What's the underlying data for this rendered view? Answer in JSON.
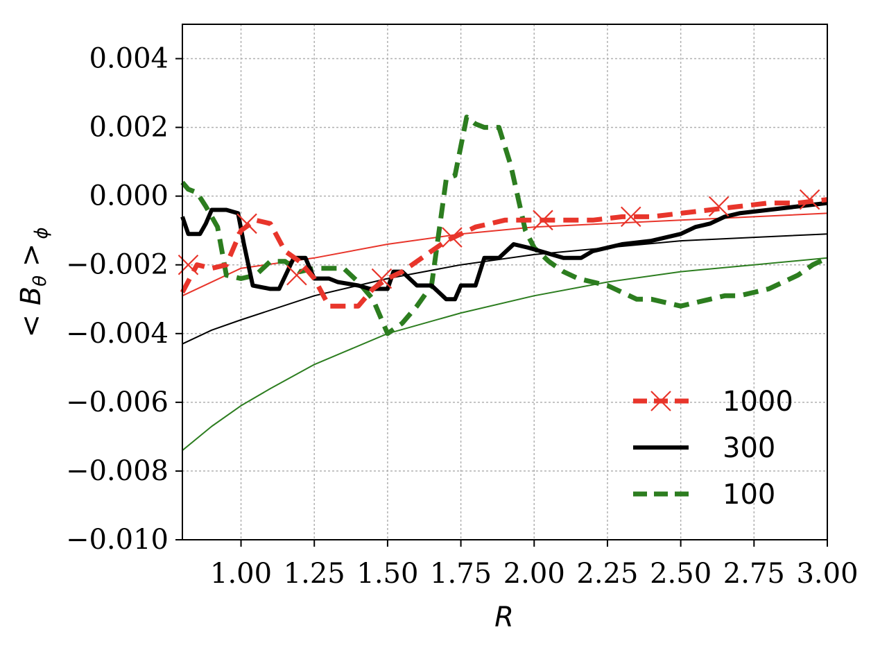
{
  "chart_data": {
    "type": "line",
    "xlabel": "R",
    "ylabel": "< B",
    "ylabel_sub": "θ",
    "ylabel_tail": " >",
    "ylabel_sub2": "ϕ",
    "xlim": [
      0.8,
      3.0
    ],
    "ylim": [
      -0.01,
      0.005
    ],
    "xticks": [
      1.0,
      1.25,
      1.5,
      1.75,
      2.0,
      2.25,
      2.5,
      2.75,
      3.0
    ],
    "xtick_labels": [
      "1.00",
      "1.25",
      "1.50",
      "1.75",
      "2.00",
      "2.25",
      "2.50",
      "2.75",
      "3.00"
    ],
    "yticks": [
      -0.01,
      -0.008,
      -0.006,
      -0.004,
      -0.002,
      0.0,
      0.002,
      0.004
    ],
    "ytick_labels": [
      "−0.010",
      "−0.008",
      "−0.006",
      "−0.004",
      "−0.002",
      "0.000",
      "0.002",
      "0.004"
    ],
    "grid": true,
    "legend_position": "bottom-right",
    "series": [
      {
        "name": "1000",
        "color": "#e8352b",
        "style": "dashed-thick",
        "marker": "x",
        "x": [
          0.8,
          0.85,
          0.9,
          0.95,
          1.0,
          1.05,
          1.1,
          1.15,
          1.2,
          1.25,
          1.3,
          1.35,
          1.4,
          1.45,
          1.5,
          1.55,
          1.6,
          1.65,
          1.7,
          1.75,
          1.8,
          1.85,
          1.9,
          2.0,
          2.1,
          2.2,
          2.3,
          2.4,
          2.5,
          2.6,
          2.7,
          2.8,
          2.9,
          3.0
        ],
        "y": [
          -0.0028,
          -0.002,
          -0.0021,
          -0.002,
          -0.001,
          -0.0007,
          -0.0008,
          -0.0016,
          -0.0019,
          -0.0024,
          -0.0032,
          -0.0032,
          -0.0032,
          -0.0027,
          -0.0024,
          -0.0022,
          -0.0019,
          -0.0016,
          -0.0013,
          -0.0011,
          -0.0009,
          -0.0008,
          -0.0007,
          -0.0007,
          -0.0007,
          -0.0007,
          -0.0006,
          -0.0006,
          -0.0005,
          -0.0004,
          -0.0003,
          -0.0002,
          -0.0002,
          -0.0001
        ],
        "marker_x": [
          0.82,
          1.02,
          1.19,
          1.48,
          1.72,
          2.03,
          2.33,
          2.63,
          2.94
        ],
        "marker_y": [
          -0.002,
          -0.0008,
          -0.0023,
          -0.0024,
          -0.0012,
          -0.0007,
          -0.0006,
          -0.0003,
          -0.0001
        ]
      },
      {
        "name": "300",
        "color": "#000000",
        "style": "solid-thick",
        "x": [
          0.8,
          0.82,
          0.86,
          0.88,
          0.9,
          0.95,
          0.99,
          1.01,
          1.04,
          1.1,
          1.13,
          1.18,
          1.22,
          1.25,
          1.3,
          1.33,
          1.4,
          1.44,
          1.5,
          1.52,
          1.55,
          1.6,
          1.65,
          1.7,
          1.73,
          1.75,
          1.8,
          1.83,
          1.88,
          1.93,
          1.98,
          2.02,
          2.1,
          2.16,
          2.2,
          2.3,
          2.4,
          2.5,
          2.55,
          2.6,
          2.65,
          2.7,
          2.8,
          2.9,
          3.0
        ],
        "y": [
          -0.0006,
          -0.0011,
          -0.0011,
          -0.0008,
          -0.0004,
          -0.0004,
          -0.0005,
          -0.0014,
          -0.0026,
          -0.0027,
          -0.0027,
          -0.0018,
          -0.0018,
          -0.0024,
          -0.0024,
          -0.0025,
          -0.0026,
          -0.0027,
          -0.0027,
          -0.0022,
          -0.0022,
          -0.0026,
          -0.0026,
          -0.003,
          -0.003,
          -0.0026,
          -0.0026,
          -0.0018,
          -0.0018,
          -0.0014,
          -0.0015,
          -0.0016,
          -0.0018,
          -0.0018,
          -0.0016,
          -0.0014,
          -0.0013,
          -0.0011,
          -0.0009,
          -0.0008,
          -0.0006,
          -0.0005,
          -0.0004,
          -0.0003,
          -0.0002
        ]
      },
      {
        "name": "100",
        "color": "#2c7d1f",
        "style": "dashed-thick",
        "x": [
          0.8,
          0.82,
          0.85,
          0.88,
          0.92,
          0.95,
          1.0,
          1.05,
          1.1,
          1.15,
          1.2,
          1.25,
          1.3,
          1.35,
          1.4,
          1.45,
          1.5,
          1.55,
          1.6,
          1.65,
          1.7,
          1.73,
          1.77,
          1.8,
          1.83,
          1.88,
          1.92,
          1.97,
          2.0,
          2.05,
          2.1,
          2.15,
          2.2,
          2.25,
          2.3,
          2.35,
          2.4,
          2.45,
          2.5,
          2.55,
          2.6,
          2.65,
          2.7,
          2.75,
          2.8,
          2.85,
          2.9,
          2.95,
          3.0
        ],
        "y": [
          0.0004,
          0.0002,
          0.0001,
          -0.0003,
          -0.0009,
          -0.0023,
          -0.0024,
          -0.0023,
          -0.0019,
          -0.0019,
          -0.0022,
          -0.0021,
          -0.0021,
          -0.0021,
          -0.0025,
          -0.003,
          -0.004,
          -0.0037,
          -0.0032,
          -0.0026,
          0.0005,
          0.0006,
          0.0023,
          0.0021,
          0.002,
          0.002,
          0.0009,
          -0.001,
          -0.0015,
          -0.0019,
          -0.0022,
          -0.0024,
          -0.0025,
          -0.0026,
          -0.0028,
          -0.003,
          -0.003,
          -0.0031,
          -0.0032,
          -0.0031,
          -0.003,
          -0.0029,
          -0.0029,
          -0.0028,
          -0.0027,
          -0.0025,
          -0.0023,
          -0.002,
          -0.0018
        ]
      },
      {
        "name": "",
        "color": "#e8352b",
        "style": "solid-thin",
        "x": [
          0.8,
          1.0,
          1.25,
          1.5,
          1.75,
          2.0,
          2.25,
          2.5,
          2.75,
          3.0
        ],
        "y": [
          -0.0029,
          -0.0021,
          -0.0018,
          -0.0014,
          -0.0011,
          -0.0009,
          -0.0008,
          -0.0007,
          -0.0006,
          -0.0005
        ]
      },
      {
        "name": "",
        "color": "#000000",
        "style": "solid-thin",
        "x": [
          0.8,
          0.9,
          1.0,
          1.25,
          1.5,
          1.75,
          2.0,
          2.25,
          2.5,
          2.75,
          3.0
        ],
        "y": [
          -0.0043,
          -0.0039,
          -0.0036,
          -0.0029,
          -0.0024,
          -0.002,
          -0.0017,
          -0.0015,
          -0.0013,
          -0.0012,
          -0.0011
        ]
      },
      {
        "name": "",
        "color": "#2c7d1f",
        "style": "solid-thin",
        "x": [
          0.8,
          0.9,
          1.0,
          1.1,
          1.25,
          1.5,
          1.75,
          2.0,
          2.25,
          2.5,
          2.75,
          3.0
        ],
        "y": [
          -0.0074,
          -0.0067,
          -0.0061,
          -0.0056,
          -0.0049,
          -0.004,
          -0.0034,
          -0.0029,
          -0.0025,
          -0.0022,
          -0.002,
          -0.0018
        ]
      }
    ]
  }
}
